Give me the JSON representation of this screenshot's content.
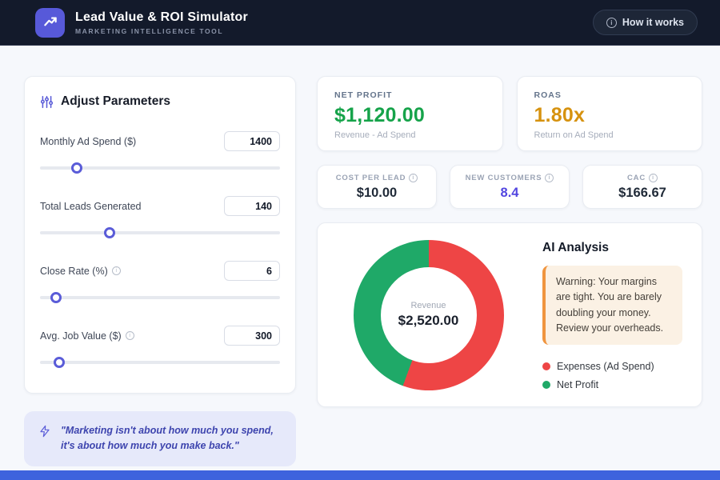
{
  "header": {
    "title": "Lead Value & ROI Simulator",
    "subtitle": "MARKETING INTELLIGENCE TOOL",
    "help_button_label": "How it works",
    "help_icon_glyph": "i",
    "logo_color": "#5759d9"
  },
  "parameters": {
    "title": "Adjust Parameters",
    "items": [
      {
        "label": "Monthly Ad Spend ($)",
        "value": "1400",
        "slider_percent": 15.2,
        "has_info": false
      },
      {
        "label": "Total Leads Generated",
        "value": "140",
        "slider_percent": 29,
        "has_info": false
      },
      {
        "label": "Close Rate (%)",
        "value": "6",
        "slider_percent": 6.6,
        "has_info": true
      },
      {
        "label": "Avg. Job Value ($)",
        "value": "300",
        "slider_percent": 7.9,
        "has_info": true
      }
    ],
    "info_glyph": "i"
  },
  "quote": {
    "text": "\"Marketing isn't about how much you spend, it's about how much you make back.\""
  },
  "stats": {
    "net_profit": {
      "label": "NET PROFIT",
      "value": "$1,120.00",
      "subtitle": "Revenue - Ad Spend",
      "color": "#16a34a"
    },
    "roas": {
      "label": "ROAS",
      "value": "1.80x",
      "subtitle": "Return on Ad Spend",
      "color": "#d6920f"
    },
    "mini": [
      {
        "label": "COST PER LEAD",
        "value": "$10.00",
        "color": "#1f2937"
      },
      {
        "label": "NEW CUSTOMERS",
        "value": "8.4",
        "color": "#5246e0"
      },
      {
        "label": "CAC",
        "value": "$166.67",
        "color": "#1f2937"
      }
    ]
  },
  "chart_data": {
    "type": "pie",
    "style": "donut",
    "center_label": "Revenue",
    "center_value": "$2,520.00",
    "start_angle_deg": 0,
    "slices": [
      {
        "label": "Expenses (Ad Spend)",
        "value": 1400,
        "percent": 55.6,
        "color": "#ee4545"
      },
      {
        "label": "Net Profit",
        "value": 1120,
        "percent": 44.4,
        "color": "#1fa968"
      }
    ]
  },
  "analysis": {
    "title": "AI Analysis",
    "warning": "Warning: Your margins are tight. You are barely doubling your money. Review your overheads.",
    "warning_accent": "#f0953f",
    "legend": [
      {
        "label": "Expenses (Ad Spend)",
        "color": "#ee4545"
      },
      {
        "label": "Net Profit",
        "color": "#1fa968"
      }
    ]
  }
}
